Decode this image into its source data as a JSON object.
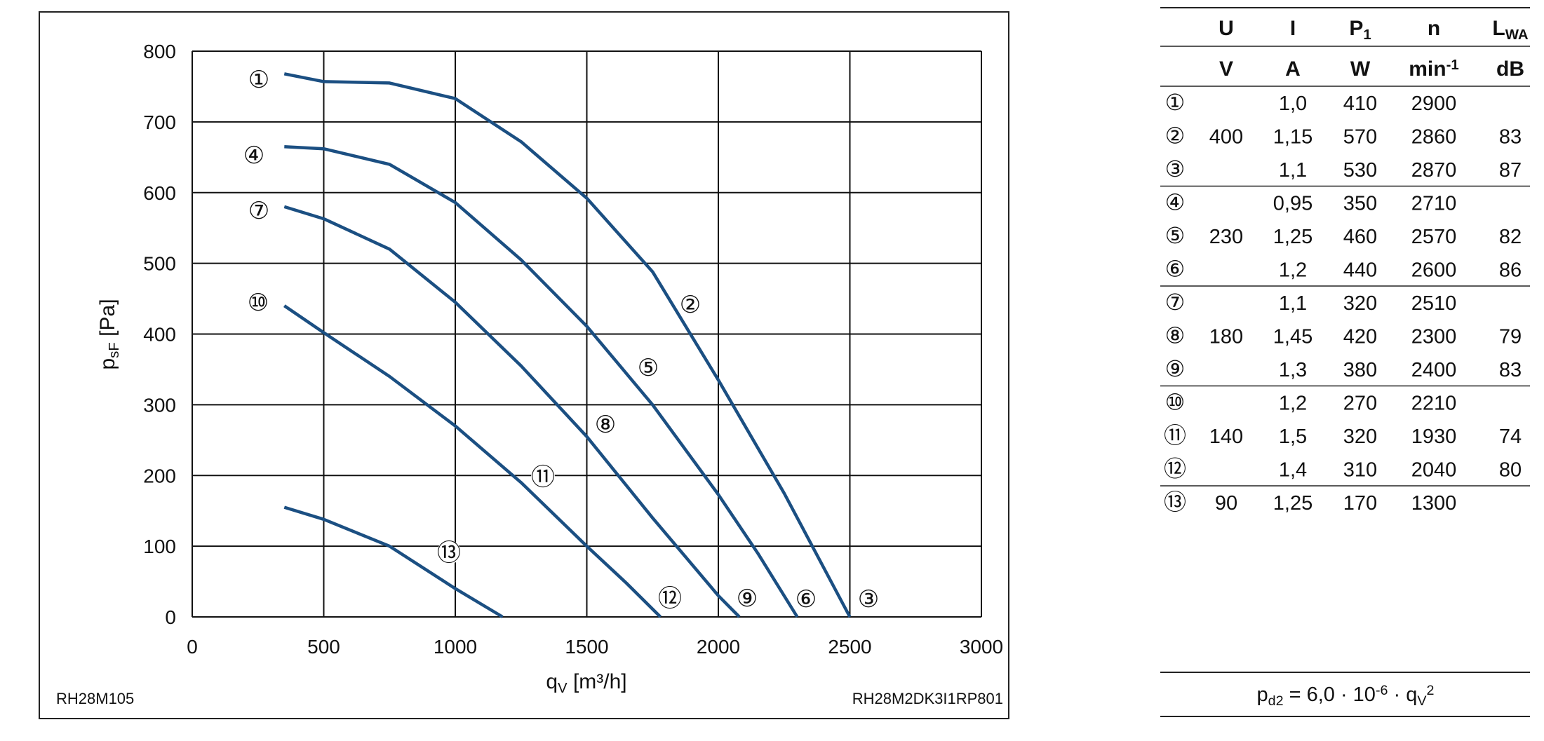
{
  "chart_data": {
    "type": "line",
    "xlabel": {
      "text": "q",
      "sub": "V",
      "rest": " [m³/h]"
    },
    "ylabel": {
      "text": "p",
      "sub": "sF",
      "rest": " [Pa]"
    },
    "xlim": [
      0,
      3000
    ],
    "xticks": [
      0,
      500,
      1000,
      1500,
      2000,
      2500,
      3000
    ],
    "ylim": [
      0,
      800
    ],
    "yticks": [
      0,
      100,
      200,
      300,
      400,
      500,
      600,
      700,
      800
    ],
    "grid": true,
    "color": "#1b4f82",
    "series": [
      {
        "x": [
          350,
          500,
          750,
          1000,
          1250,
          1500,
          1750,
          2000,
          2250,
          2500
        ],
        "values": [
          768,
          757,
          755,
          733,
          672,
          592,
          488,
          335,
          175,
          0
        ]
      },
      {
        "x": [
          350,
          500,
          750,
          1000,
          1250,
          1500,
          1750,
          2000,
          2150,
          2300
        ],
        "values": [
          665,
          662,
          640,
          586,
          505,
          411,
          300,
          173,
          90,
          0
        ]
      },
      {
        "x": [
          350,
          500,
          750,
          1000,
          1250,
          1500,
          1750,
          2000,
          2080
        ],
        "values": [
          580,
          563,
          520,
          445,
          355,
          255,
          140,
          30,
          0
        ]
      },
      {
        "x": [
          350,
          500,
          750,
          1000,
          1250,
          1500,
          1650,
          1780
        ],
        "values": [
          440,
          402,
          340,
          270,
          190,
          100,
          48,
          0
        ]
      },
      {
        "x": [
          350,
          500,
          750,
          1000,
          1180
        ],
        "values": [
          155,
          138,
          100,
          40,
          0
        ]
      }
    ],
    "annotations": [
      "①",
      "②",
      "③",
      "④",
      "⑤",
      "⑥",
      "⑦",
      "⑧",
      "⑨",
      "⑩",
      "⑪",
      "⑫",
      "⑬"
    ],
    "left_note": "RH28M105",
    "right_note": "RH28M2DK3I1RP801"
  },
  "table": {
    "headers": [
      {
        "text": "U"
      },
      {
        "text": "I"
      },
      {
        "text": "P",
        "sub": "1"
      },
      {
        "text": "n"
      },
      {
        "text": "L",
        "sub": "WA"
      }
    ],
    "units": [
      {
        "text": "V"
      },
      {
        "text": "A"
      },
      {
        "text": "W"
      },
      {
        "text": "min",
        "sup": "-1"
      },
      {
        "text": "dB"
      }
    ],
    "groups": [
      {
        "U": "400",
        "rows": [
          [
            "①",
            "1,0",
            "410",
            "2900",
            null
          ],
          [
            "②",
            "1,15",
            "570",
            "2860",
            "83"
          ],
          [
            "③",
            "1,1",
            "530",
            "2870",
            "87"
          ]
        ]
      },
      {
        "U": "230",
        "rows": [
          [
            "④",
            "0,95",
            "350",
            "2710",
            null
          ],
          [
            "⑤",
            "1,25",
            "460",
            "2570",
            "82"
          ],
          [
            "⑥",
            "1,2",
            "440",
            "2600",
            "86"
          ]
        ]
      },
      {
        "U": "180",
        "rows": [
          [
            "⑦",
            "1,1",
            "320",
            "2510",
            null
          ],
          [
            "⑧",
            "1,45",
            "420",
            "2300",
            "79"
          ],
          [
            "⑨",
            "1,3",
            "380",
            "2400",
            "83"
          ]
        ]
      },
      {
        "U": "140",
        "rows": [
          [
            "⑩",
            "1,2",
            "270",
            "2210",
            null
          ],
          [
            "⑪",
            "1,5",
            "320",
            "1930",
            "74"
          ],
          [
            "⑫",
            "1,4",
            "310",
            "2040",
            "80"
          ]
        ]
      },
      {
        "U": "90",
        "rows": [
          [
            "⑬",
            "1,25",
            "170",
            "1300",
            null
          ]
        ]
      }
    ],
    "formula": [
      {
        "text": "p"
      },
      {
        "sub": "d2"
      },
      {
        "text": " = 6,0 · 10"
      },
      {
        "sup": "-6"
      },
      {
        "text": " · q"
      },
      {
        "sub": "V"
      },
      {
        "sup": "2"
      }
    ]
  }
}
